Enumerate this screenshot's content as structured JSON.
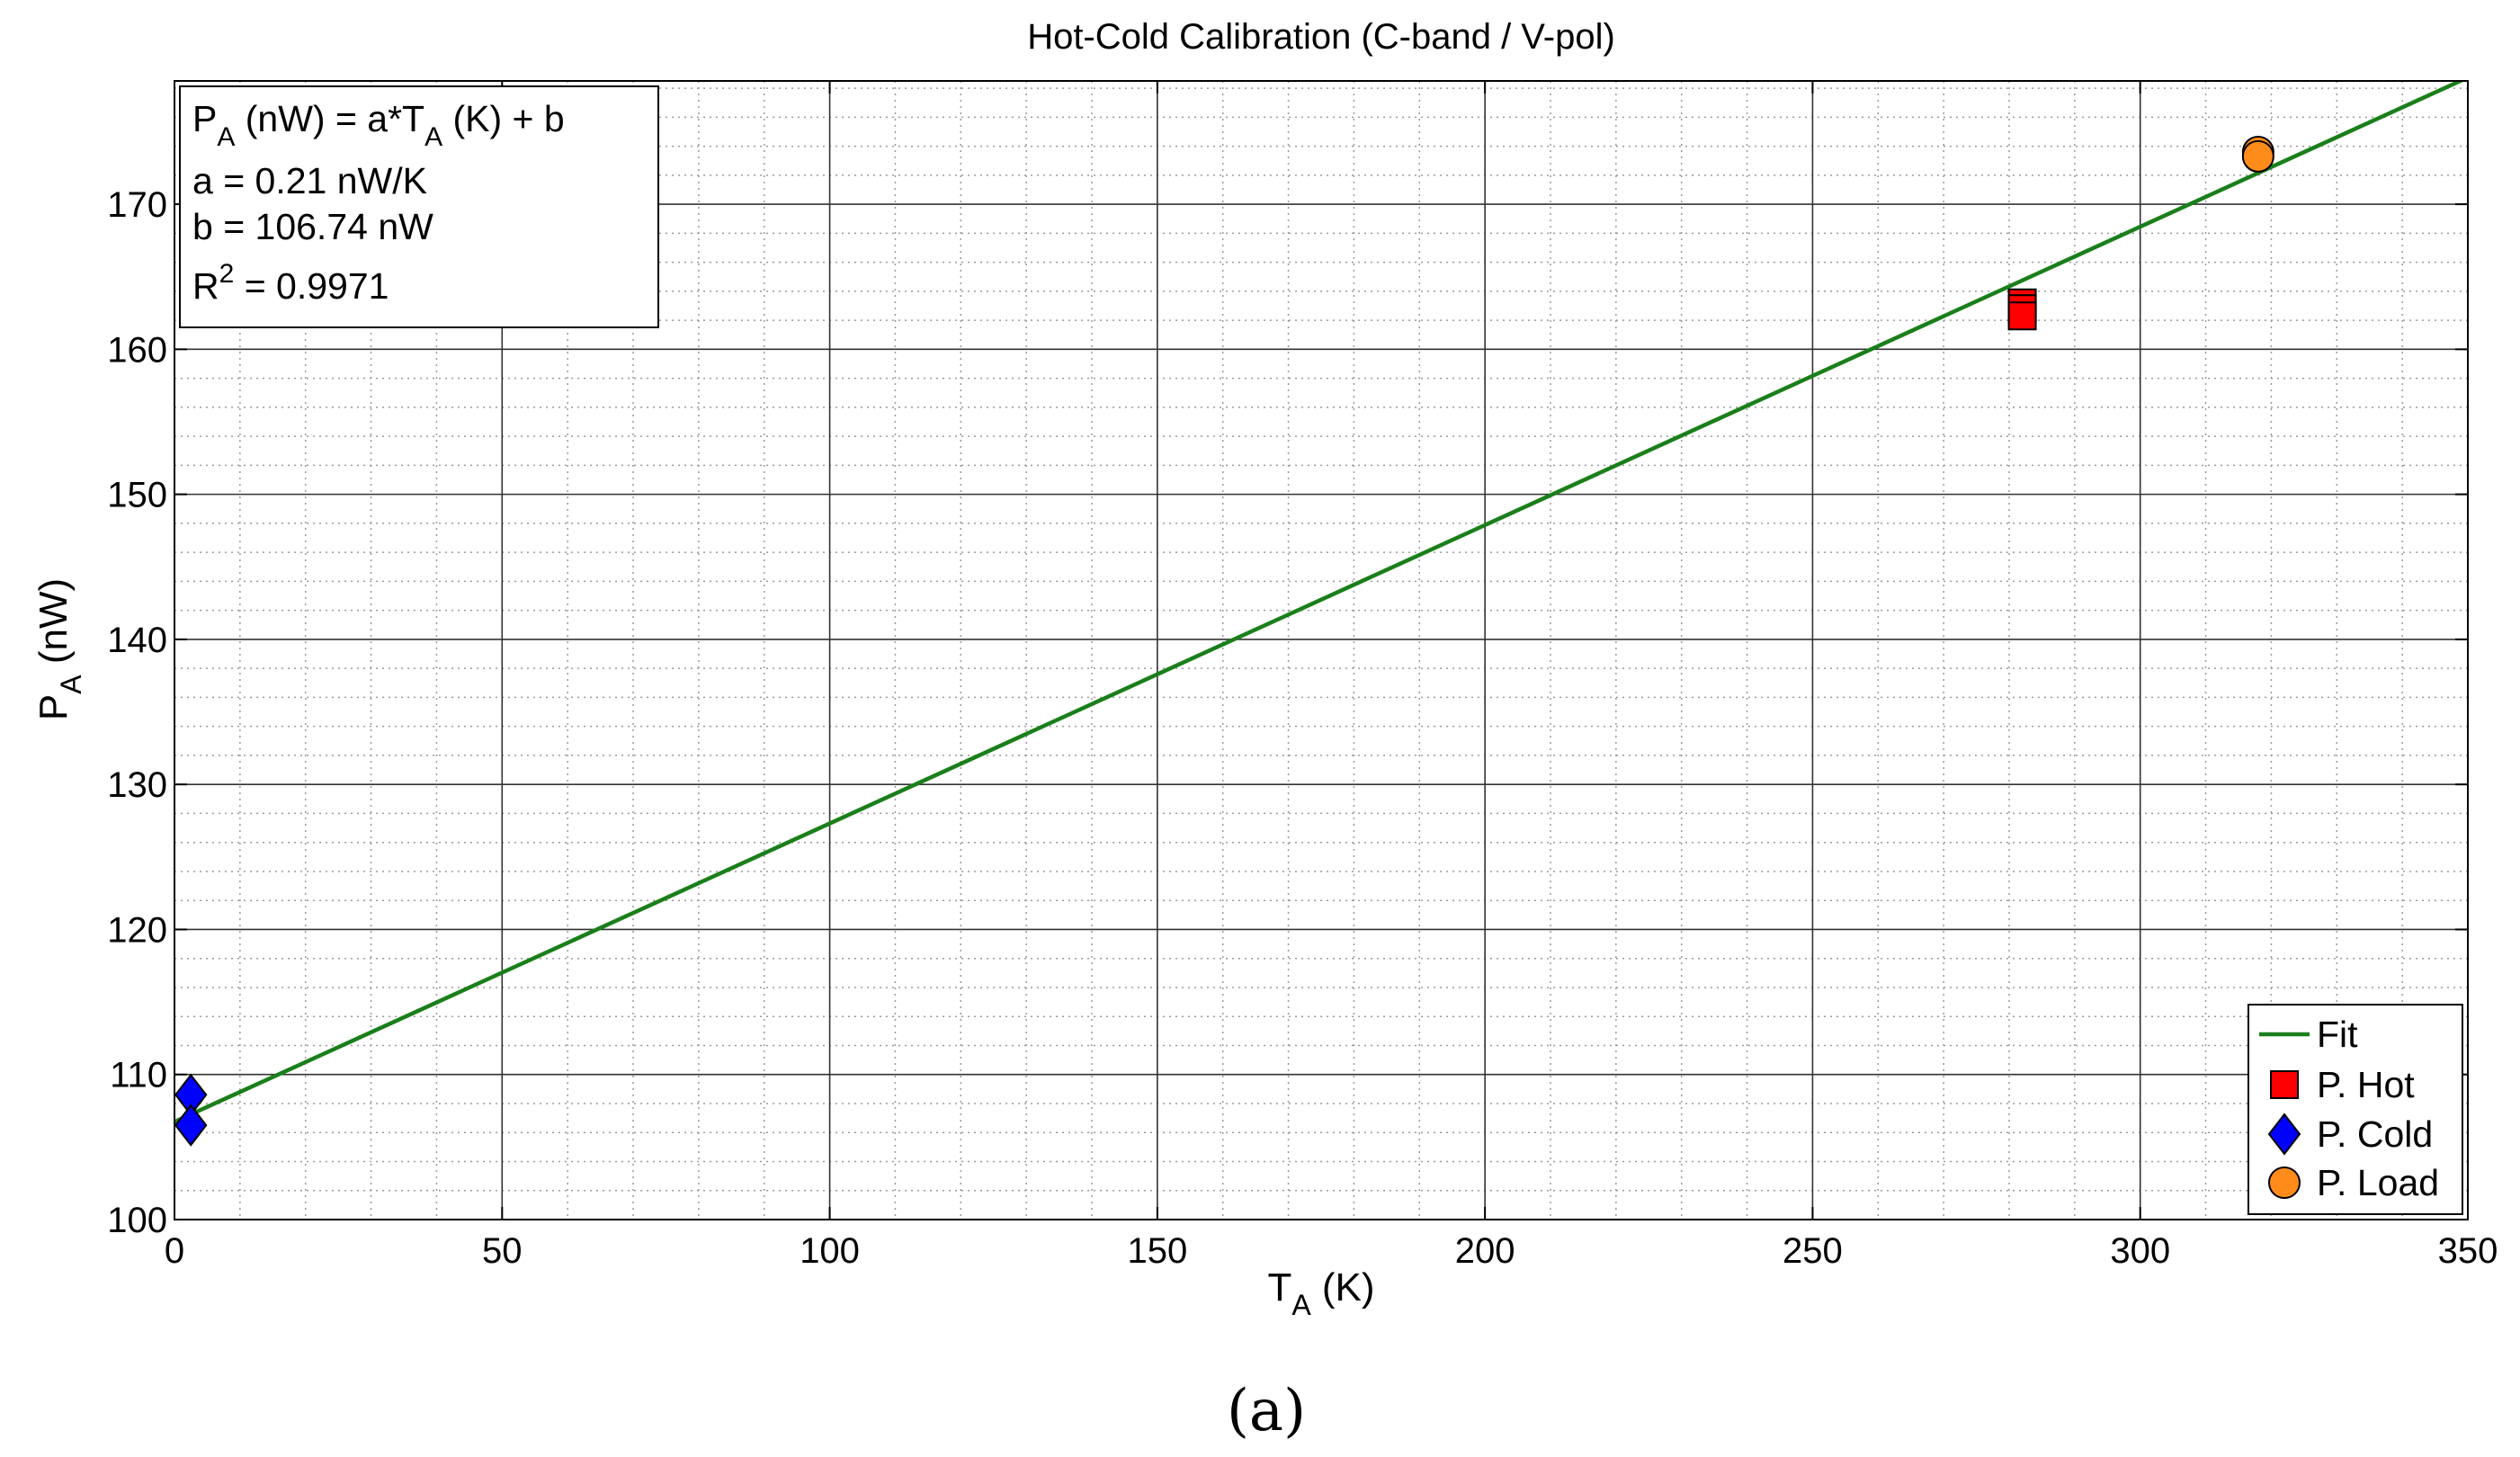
{
  "chart_data": {
    "type": "scatter",
    "title": "Hot-Cold Calibration (C-band / V-pol)",
    "xlabel": {
      "main": "T",
      "sub": "A",
      "tail": " (K)"
    },
    "ylabel": {
      "main": "P",
      "sub": "A",
      "tail": " (nW)"
    },
    "xlim": [
      0,
      350
    ],
    "ylim": [
      100,
      178.5
    ],
    "xticks": [
      0,
      50,
      100,
      150,
      200,
      250,
      300,
      350
    ],
    "yticks": [
      100,
      110,
      120,
      130,
      140,
      150,
      160,
      170
    ],
    "grid": true,
    "legend_position": "bottom-right",
    "panel_label": "(a)",
    "annotation": {
      "line1": {
        "p": "P",
        "p_sub": "A",
        "mid": " (nW) = a*T",
        "t_sub": "A",
        "tail": " (K) + b"
      },
      "line2": "a = 0.21 nW/K",
      "line3": "b = 106.74 nW",
      "line4": {
        "r": "R",
        "sup": "2",
        "tail": " = 0.9971"
      }
    },
    "fit": {
      "name": "Fit",
      "slope": 0.2057,
      "intercept": 106.74,
      "x_range": [
        0,
        350
      ],
      "color": "#1a7f1a"
    },
    "series": [
      {
        "name": "P. Hot",
        "marker": "square",
        "color": "#ff0000",
        "points": [
          [
            282,
            163.2
          ],
          [
            282,
            162.8
          ],
          [
            282,
            162.3
          ]
        ]
      },
      {
        "name": "P. Cold",
        "marker": "diamond",
        "color": "#0000ff",
        "points": [
          [
            2.5,
            108.6
          ],
          [
            2.5,
            106.5
          ]
        ]
      },
      {
        "name": "P. Load",
        "marker": "circle",
        "color": "#ff8c1a",
        "points": [
          [
            318,
            173.6
          ],
          [
            318,
            173.3
          ]
        ]
      }
    ]
  }
}
